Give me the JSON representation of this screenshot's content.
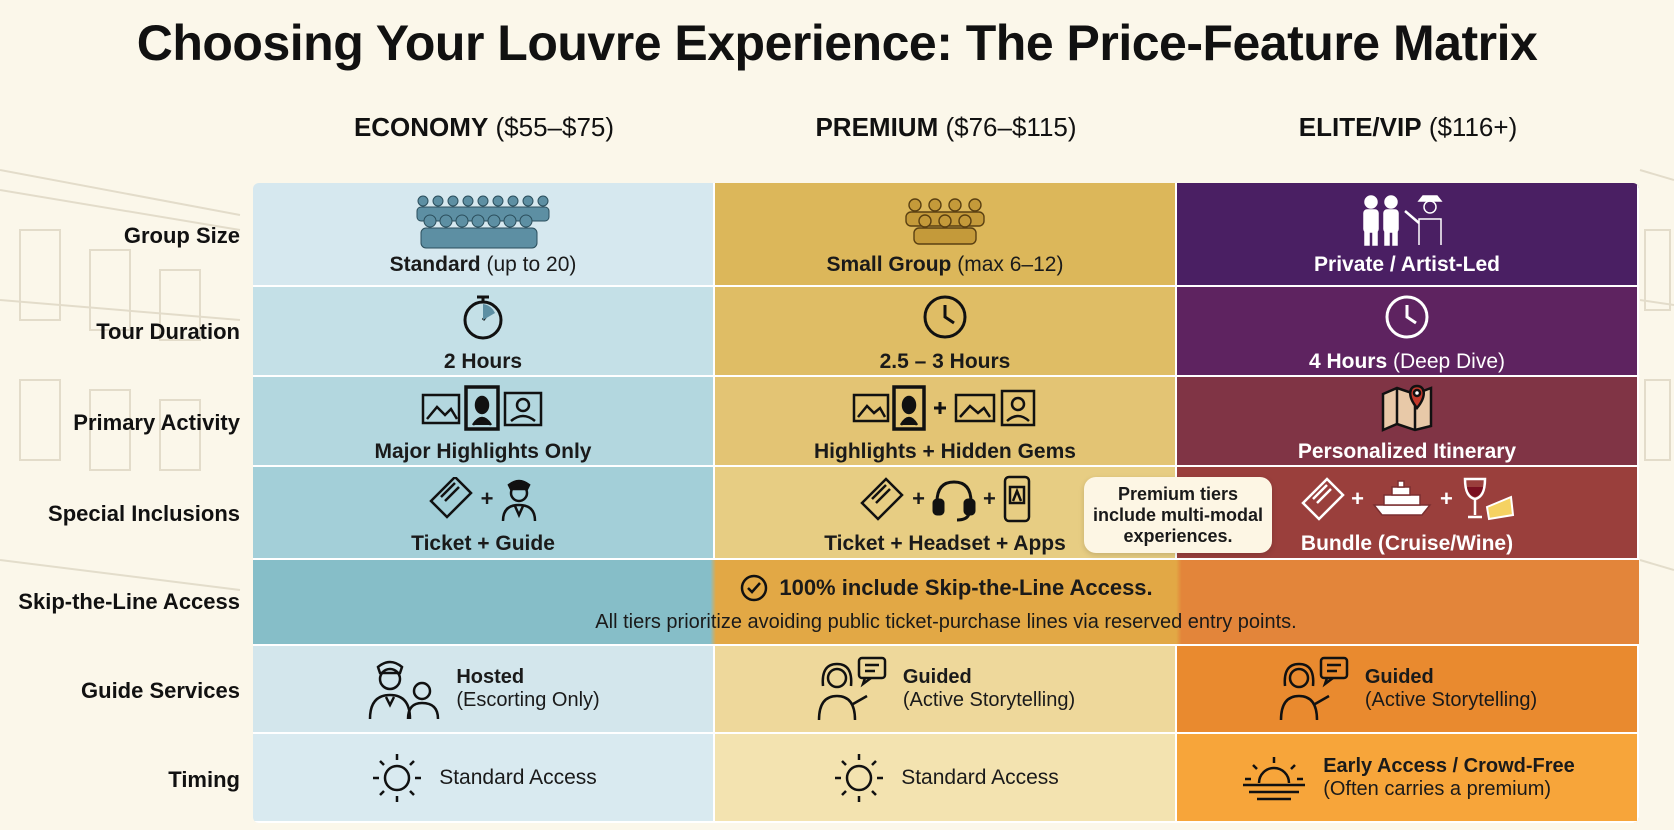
{
  "title": "Choosing Your Louvre Experience: The Price-Feature Matrix",
  "tiers": [
    {
      "name": "ECONOMY",
      "range": "($55–$75)"
    },
    {
      "name": "PREMIUM",
      "range": "($76–$115)"
    },
    {
      "name": "ELITE/VIP",
      "range": "($116+)"
    }
  ],
  "rows": {
    "group_size": "Group Size",
    "tour_duration": "Tour Duration",
    "primary_activity": "Primary Activity",
    "special_inclusions": "Special Inclusions",
    "skip_line": "Skip-the-Line Access",
    "guide_services": "Guide Services",
    "timing": "Timing"
  },
  "economy": {
    "group_bold": "Standard",
    "group_rest": "(up to 20)",
    "duration": "2 Hours",
    "activity": "Major Highlights Only",
    "inclusions": "Ticket + Guide",
    "guide_bold": "Hosted",
    "guide_rest": "(Escorting Only)",
    "timing": "Standard Access"
  },
  "premium": {
    "group_bold": "Small Group",
    "group_rest": "(max 6–12)",
    "duration": "2.5 – 3 Hours",
    "activity": "Highlights + Hidden Gems",
    "inclusions": "Ticket + Headset + Apps",
    "guide_bold": "Guided",
    "guide_rest": "(Active Storytelling)",
    "timing": "Standard Access"
  },
  "elite": {
    "group_bold": "Private / Artist-Led",
    "duration_bold": "4 Hours",
    "duration_rest": "(Deep Dive)",
    "activity": "Personalized Itinerary",
    "inclusions": "Bundle (Cruise/Wine)",
    "guide_bold": "Guided",
    "guide_rest": "(Active Storytelling)",
    "timing_bold": "Early Access / Crowd-Free",
    "timing_rest": "(Often carries a premium)"
  },
  "skip": {
    "main": "100% include Skip-the-Line Access.",
    "sub": "All tiers prioritize avoiding public ticket-purchase lines via reserved entry points."
  },
  "callout": "Premium tiers include multi-modal experiences.",
  "plus": "+",
  "colors": {
    "economy": [
      "#d6e8ef",
      "#c4e0e7",
      "#b3d7df",
      "#a3cfd8",
      "#d3e6ec",
      "#d9eaf0"
    ],
    "premium": [
      "#dcb75a",
      "#dfbd65",
      "#e3c474",
      "#e7cd83",
      "#eed89b",
      "#f3e3b0"
    ],
    "elite": [
      "#4a1f63",
      "#5e2360",
      "#803445",
      "#9a3f3c",
      "#e98a2f",
      "#f7a53a"
    ],
    "skip_start": "#86bec8",
    "skip_mid": "#e2a845",
    "skip_end": "#e3853a"
  }
}
